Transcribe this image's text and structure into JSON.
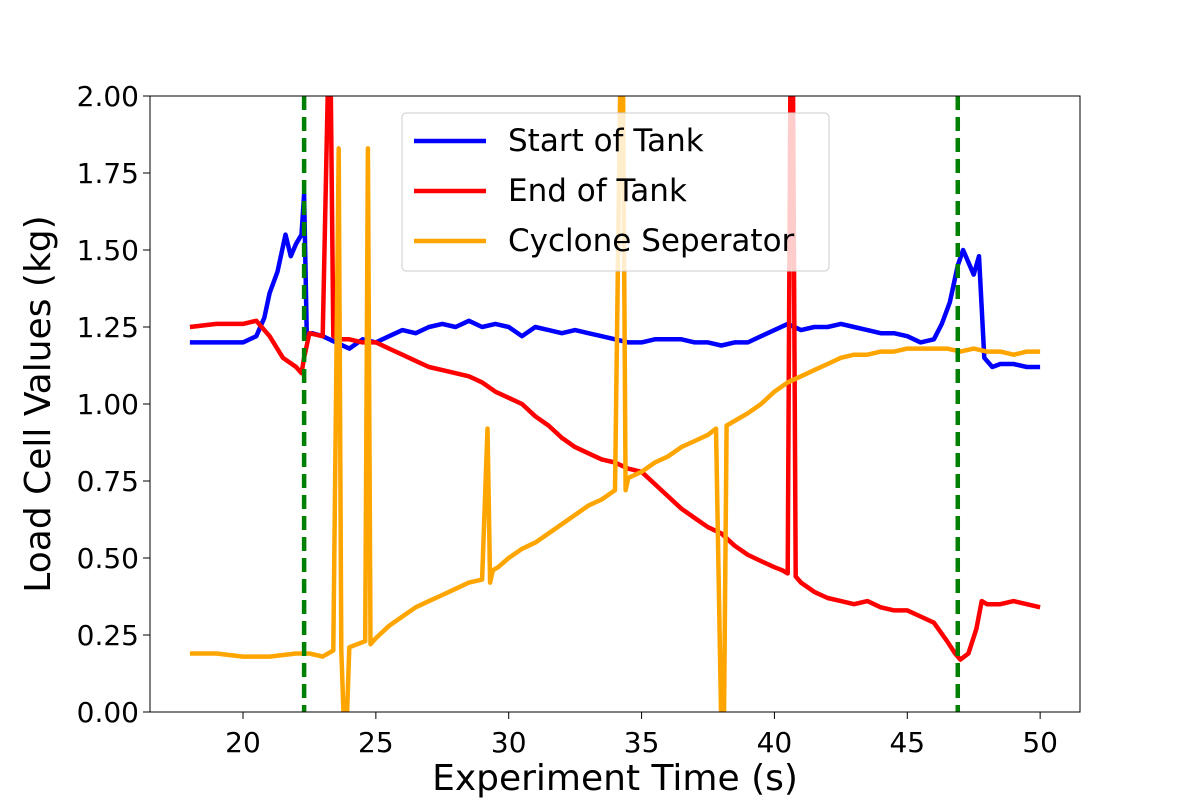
{
  "chart_data": {
    "type": "line",
    "title": "",
    "xlabel": "Experiment Time (s)",
    "ylabel": "Load Cell Values (kg)",
    "xlim": [
      16.5,
      51.5
    ],
    "ylim": [
      0,
      2
    ],
    "xticks": [
      20,
      25,
      30,
      35,
      40,
      45,
      50
    ],
    "xtick_labels": [
      "20",
      "25",
      "30",
      "35",
      "40",
      "45",
      "50"
    ],
    "yticks": [
      0,
      0.25,
      0.5,
      0.75,
      1.0,
      1.25,
      1.5,
      1.75,
      2.0
    ],
    "ytick_labels": [
      "0.00",
      "0.25",
      "0.50",
      "0.75",
      "1.00",
      "1.25",
      "1.50",
      "1.75",
      "2.00"
    ],
    "grid": false,
    "legend_position": "top-center",
    "series": [
      {
        "name": "Start of Tank",
        "color": "#0000ff",
        "x": [
          18.0,
          19.0,
          20.0,
          20.5,
          20.8,
          21.0,
          21.3,
          21.6,
          21.8,
          22.0,
          22.2,
          22.3,
          22.4,
          22.6,
          23.0,
          23.5,
          24.0,
          24.5,
          25.0,
          25.5,
          26.0,
          26.5,
          27.0,
          27.5,
          28.0,
          28.5,
          29.0,
          29.5,
          30.0,
          30.5,
          31.0,
          31.5,
          32.0,
          32.5,
          33.0,
          33.5,
          34.0,
          34.5,
          35.0,
          35.5,
          36.0,
          36.5,
          37.0,
          37.5,
          38.0,
          38.5,
          39.0,
          39.5,
          40.0,
          40.5,
          41.0,
          41.5,
          42.0,
          42.5,
          43.0,
          43.5,
          44.0,
          44.5,
          45.0,
          45.5,
          46.0,
          46.3,
          46.6,
          46.9,
          47.1,
          47.3,
          47.5,
          47.7,
          47.9,
          48.2,
          48.5,
          49.0,
          49.5,
          50.0
        ],
        "y": [
          1.2,
          1.2,
          1.2,
          1.22,
          1.28,
          1.36,
          1.43,
          1.55,
          1.48,
          1.52,
          1.55,
          1.68,
          1.22,
          1.23,
          1.22,
          1.2,
          1.18,
          1.21,
          1.2,
          1.22,
          1.24,
          1.23,
          1.25,
          1.26,
          1.25,
          1.27,
          1.25,
          1.26,
          1.25,
          1.22,
          1.25,
          1.24,
          1.23,
          1.24,
          1.23,
          1.22,
          1.21,
          1.2,
          1.2,
          1.21,
          1.21,
          1.21,
          1.2,
          1.2,
          1.19,
          1.2,
          1.2,
          1.22,
          1.24,
          1.26,
          1.24,
          1.25,
          1.25,
          1.26,
          1.25,
          1.24,
          1.23,
          1.23,
          1.22,
          1.2,
          1.21,
          1.26,
          1.33,
          1.45,
          1.5,
          1.46,
          1.42,
          1.48,
          1.15,
          1.12,
          1.13,
          1.13,
          1.12,
          1.12
        ]
      },
      {
        "name": "End of Tank",
        "color": "#ff0000",
        "x": [
          18.0,
          19.0,
          20.0,
          20.5,
          21.0,
          21.5,
          22.0,
          22.2,
          22.3,
          22.5,
          23.0,
          23.2,
          23.3,
          23.4,
          23.6,
          24.0,
          24.5,
          25.0,
          25.5,
          26.0,
          26.5,
          27.0,
          27.5,
          28.0,
          28.5,
          29.0,
          29.5,
          30.0,
          30.5,
          31.0,
          31.5,
          32.0,
          32.5,
          33.0,
          33.5,
          34.0,
          34.5,
          35.0,
          35.5,
          36.0,
          36.5,
          37.0,
          37.5,
          38.0,
          38.5,
          39.0,
          39.5,
          40.0,
          40.3,
          40.5,
          40.6,
          40.7,
          40.8,
          41.0,
          41.5,
          42.0,
          42.5,
          43.0,
          43.5,
          44.0,
          44.5,
          45.0,
          45.5,
          46.0,
          46.5,
          46.8,
          47.0,
          47.3,
          47.6,
          47.8,
          48.0,
          48.5,
          49.0,
          49.5,
          50.0
        ],
        "y": [
          1.25,
          1.26,
          1.26,
          1.27,
          1.22,
          1.15,
          1.12,
          1.1,
          1.15,
          1.23,
          1.22,
          2.05,
          2.05,
          1.22,
          1.21,
          1.21,
          1.2,
          1.2,
          1.18,
          1.16,
          1.14,
          1.12,
          1.11,
          1.1,
          1.09,
          1.07,
          1.04,
          1.02,
          1.0,
          0.96,
          0.93,
          0.89,
          0.86,
          0.84,
          0.82,
          0.81,
          0.79,
          0.78,
          0.74,
          0.7,
          0.66,
          0.63,
          0.6,
          0.58,
          0.54,
          0.51,
          0.49,
          0.47,
          0.46,
          0.45,
          2.05,
          2.05,
          0.44,
          0.42,
          0.39,
          0.37,
          0.36,
          0.35,
          0.36,
          0.34,
          0.33,
          0.33,
          0.31,
          0.29,
          0.23,
          0.19,
          0.17,
          0.19,
          0.27,
          0.36,
          0.35,
          0.35,
          0.36,
          0.35,
          0.34
        ]
      },
      {
        "name": "Cyclone Seperator",
        "color": "#ffa500",
        "x": [
          18.0,
          19.0,
          20.0,
          21.0,
          22.0,
          22.5,
          23.0,
          23.4,
          23.6,
          23.7,
          23.8,
          23.9,
          24.0,
          24.3,
          24.6,
          24.7,
          24.8,
          24.9,
          25.0,
          25.5,
          26.0,
          26.5,
          27.0,
          27.5,
          28.0,
          28.5,
          29.0,
          29.2,
          29.3,
          29.4,
          29.6,
          30.0,
          30.5,
          31.0,
          31.5,
          32.0,
          32.5,
          33.0,
          33.5,
          34.0,
          34.2,
          34.3,
          34.4,
          34.5,
          35.0,
          35.5,
          36.0,
          36.5,
          37.0,
          37.5,
          37.8,
          38.0,
          38.1,
          38.2,
          38.4,
          39.0,
          39.5,
          40.0,
          40.5,
          41.0,
          41.5,
          42.0,
          42.5,
          43.0,
          43.5,
          44.0,
          44.5,
          45.0,
          45.5,
          46.0,
          46.5,
          47.0,
          47.5,
          48.0,
          48.5,
          49.0,
          49.5,
          50.0
        ],
        "y": [
          0.19,
          0.19,
          0.18,
          0.18,
          0.19,
          0.19,
          0.18,
          0.2,
          1.83,
          0.2,
          -0.05,
          -0.05,
          0.21,
          0.22,
          0.23,
          1.83,
          0.22,
          0.23,
          0.24,
          0.28,
          0.31,
          0.34,
          0.36,
          0.38,
          0.4,
          0.42,
          0.43,
          0.92,
          0.42,
          0.46,
          0.47,
          0.5,
          0.53,
          0.55,
          0.58,
          0.61,
          0.64,
          0.67,
          0.69,
          0.72,
          2.05,
          2.05,
          0.72,
          0.76,
          0.78,
          0.81,
          0.83,
          0.86,
          0.88,
          0.9,
          0.92,
          -0.05,
          -0.05,
          0.93,
          0.94,
          0.97,
          1.0,
          1.04,
          1.07,
          1.09,
          1.11,
          1.13,
          1.15,
          1.16,
          1.16,
          1.17,
          1.17,
          1.18,
          1.18,
          1.18,
          1.18,
          1.17,
          1.18,
          1.17,
          1.17,
          1.16,
          1.17,
          1.17
        ]
      }
    ],
    "vertical_lines": [
      {
        "x": 22.3,
        "color": "#008000",
        "style": "dashed"
      },
      {
        "x": 46.9,
        "color": "#008000",
        "style": "dashed"
      }
    ]
  }
}
